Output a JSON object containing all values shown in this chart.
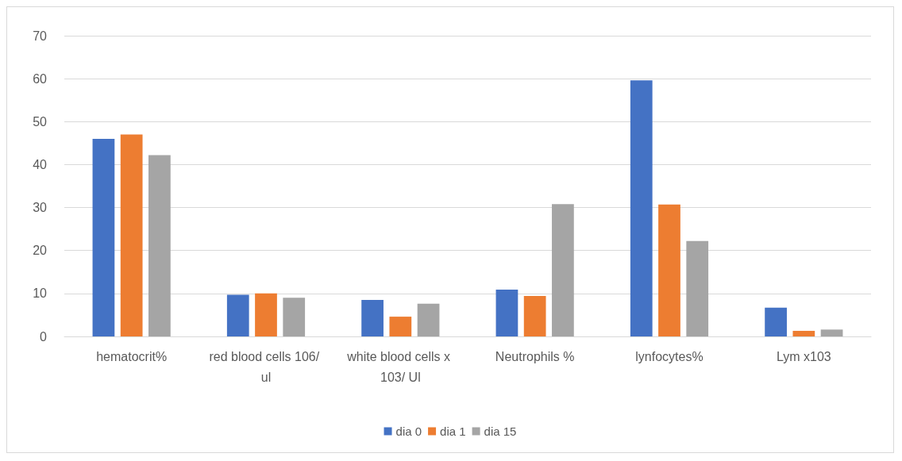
{
  "chart_data": {
    "type": "bar",
    "categories": [
      "hematocrit%",
      "red blood cells 106/ ul",
      "white blood cells x 103/ Ul",
      "Neutrophils %",
      "lynfocytes%",
      "Lym x103"
    ],
    "series": [
      {
        "name": "dia 0",
        "color": "#4472c4",
        "values": [
          46.0,
          9.7,
          8.5,
          10.9,
          59.6,
          6.7
        ]
      },
      {
        "name": "dia 1",
        "color": "#ed7d31",
        "values": [
          47.0,
          10.0,
          4.6,
          9.4,
          30.7,
          1.3
        ]
      },
      {
        "name": "dia 15",
        "color": "#a5a5a5",
        "values": [
          42.2,
          9.0,
          7.6,
          30.8,
          22.2,
          1.6
        ]
      }
    ],
    "ylim": [
      0,
      70
    ],
    "yticks": [
      0,
      10,
      20,
      30,
      40,
      50,
      60,
      70
    ],
    "grid": "y",
    "legend": "bottom"
  }
}
